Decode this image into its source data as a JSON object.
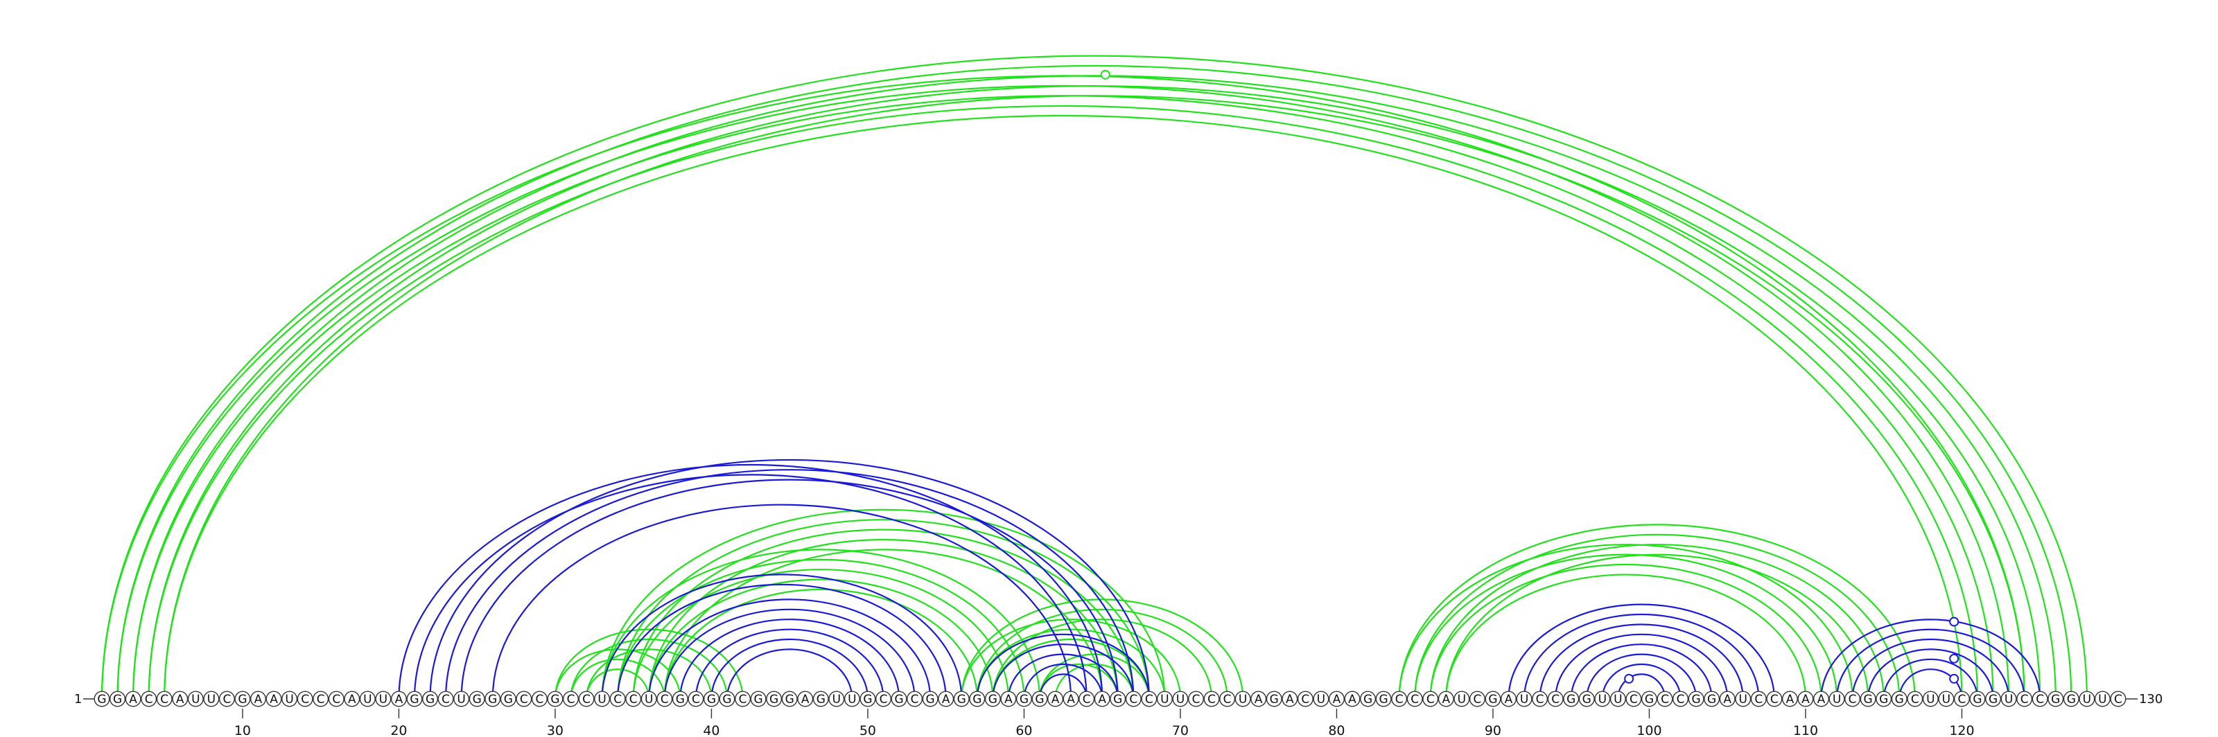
{
  "chart_data": {
    "type": "arc-diagram",
    "sequence": "GGACCAUUCGAAUCCCAUUAGGCUGGGCCGCCUCCUCGCGGCGGGAGUUGCGCGAGGGAGGAACAGCCUUCCCUAGACUAAGGCCCAUCGAUCCGGUUCGCCGGAUCCAAAUCGGGCUUCGGUCCGGUUC",
    "length": 130,
    "start_label": "1",
    "end_label": "130",
    "ticks": [
      10,
      20,
      30,
      40,
      50,
      60,
      70,
      80,
      90,
      100,
      110,
      120
    ],
    "colors": {
      "blue": "#1a1ad6",
      "green": "#22e01c"
    },
    "series": [
      {
        "color_key": "green",
        "pairs": [
          [
            1,
            124
          ],
          [
            1,
            128
          ],
          [
            2,
            123
          ],
          [
            2,
            127
          ],
          [
            3,
            122
          ],
          [
            3,
            126
          ],
          [
            4,
            121
          ],
          [
            4,
            125
          ],
          [
            5,
            120
          ],
          [
            5,
            124
          ],
          [
            30,
            38
          ],
          [
            30,
            42
          ],
          [
            31,
            37
          ],
          [
            31,
            41
          ],
          [
            32,
            36
          ],
          [
            32,
            40
          ],
          [
            33,
            61
          ],
          [
            33,
            69
          ],
          [
            34,
            60
          ],
          [
            34,
            68
          ],
          [
            35,
            59
          ],
          [
            35,
            67
          ],
          [
            36,
            58
          ],
          [
            36,
            66
          ],
          [
            37,
            57
          ],
          [
            37,
            65
          ],
          [
            56,
            70
          ],
          [
            56,
            74
          ],
          [
            57,
            69
          ],
          [
            57,
            73
          ],
          [
            58,
            68
          ],
          [
            58,
            72
          ],
          [
            61,
            66
          ],
          [
            61,
            68
          ],
          [
            62,
            67
          ],
          [
            84,
            113
          ],
          [
            84,
            117
          ],
          [
            85,
            112
          ],
          [
            85,
            116
          ],
          [
            86,
            111
          ],
          [
            86,
            115
          ],
          [
            87,
            110
          ],
          [
            87,
            114
          ]
        ]
      },
      {
        "color_key": "blue",
        "pairs": [
          [
            20,
            65
          ],
          [
            21,
            64
          ],
          [
            22,
            68
          ],
          [
            23,
            67
          ],
          [
            24,
            66
          ],
          [
            26,
            63
          ],
          [
            33,
            56
          ],
          [
            34,
            55
          ],
          [
            36,
            54
          ],
          [
            37,
            53
          ],
          [
            38,
            52
          ],
          [
            39,
            51
          ],
          [
            40,
            50
          ],
          [
            41,
            49
          ],
          [
            57,
            68
          ],
          [
            58,
            67
          ],
          [
            59,
            66
          ],
          [
            60,
            65
          ],
          [
            61,
            64
          ],
          [
            91,
            108
          ],
          [
            92,
            107
          ],
          [
            93,
            106
          ],
          [
            94,
            105
          ],
          [
            95,
            104
          ],
          [
            96,
            103
          ],
          [
            97,
            102
          ],
          [
            98,
            101
          ],
          [
            111,
            125
          ],
          [
            112,
            124
          ],
          [
            113,
            123
          ],
          [
            114,
            122
          ],
          [
            115,
            121
          ],
          [
            116,
            120
          ]
        ]
      }
    ],
    "markers": [
      {
        "color_key": "green",
        "pos": 65.2,
        "height": 0.93
      },
      {
        "color_key": "blue",
        "pos": 98.7,
        "height": 0.03
      },
      {
        "color_key": "blue",
        "pos": 119.5,
        "height": 0.03
      },
      {
        "color_key": "blue",
        "pos": 119.5,
        "height": 0.06
      },
      {
        "color_key": "blue",
        "pos": 119.5,
        "height": 0.115
      }
    ]
  }
}
